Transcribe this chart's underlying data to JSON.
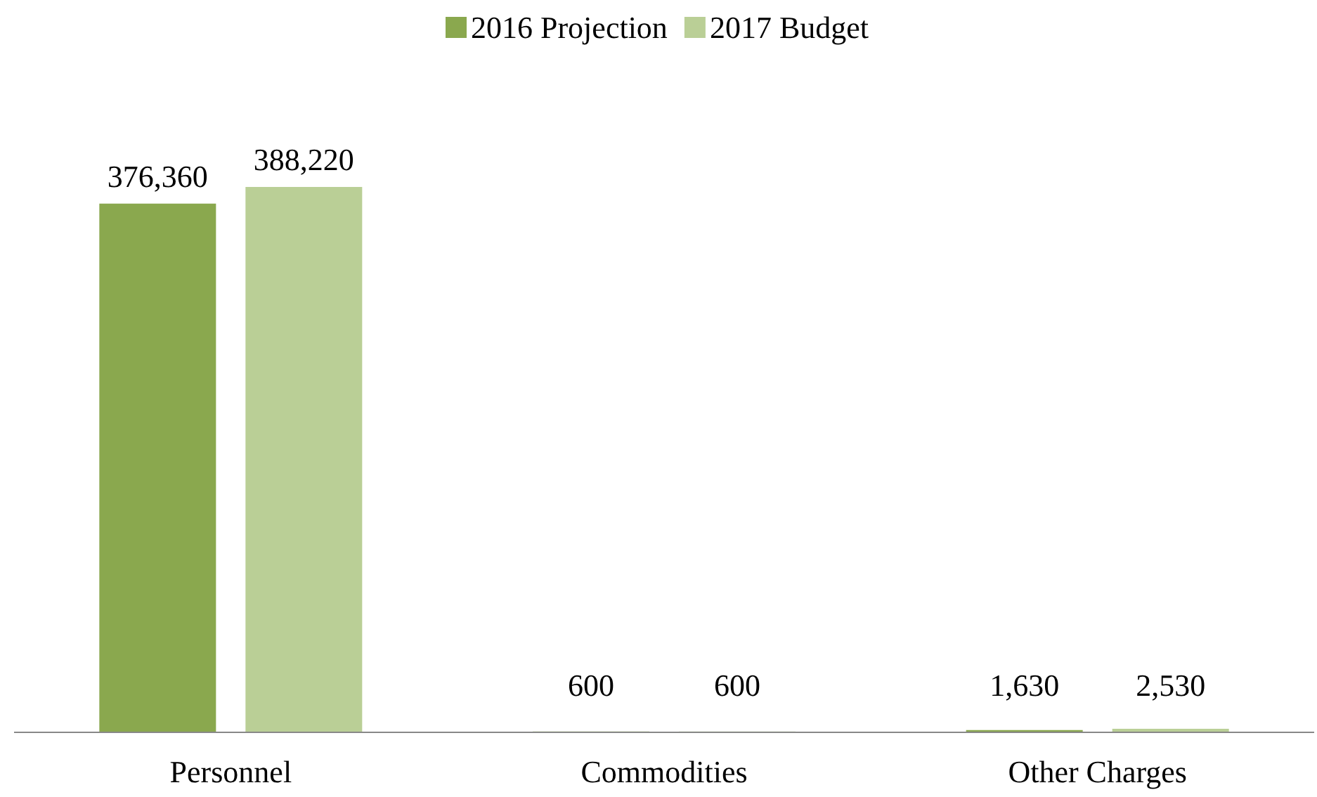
{
  "chart_data": {
    "type": "bar",
    "categories": [
      "Personnel",
      "Commodities",
      "Other Charges"
    ],
    "series": [
      {
        "name": "2016 Projection",
        "color": "#8aa84e",
        "values": [
          376360,
          600,
          1630
        ],
        "value_labels": [
          "376,360",
          "600",
          "1,630"
        ]
      },
      {
        "name": "2017 Budget",
        "color": "#bacf96",
        "values": [
          388220,
          600,
          2530
        ],
        "value_labels": [
          "388,220",
          "600",
          "2,530"
        ]
      }
    ],
    "legend": "top",
    "grid": false
  }
}
